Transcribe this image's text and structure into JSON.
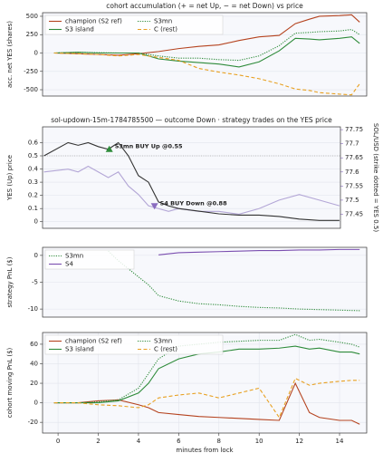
{
  "chart_data": [
    {
      "type": "line",
      "title": "cohort accumulation (+ = net Up, − = net Down) vs price",
      "ylabel": "acc. net YES (shares)",
      "x": [
        -0.2,
        1,
        2,
        3,
        4,
        5,
        6,
        7,
        8,
        9,
        10,
        11,
        11.8,
        12.5,
        13,
        14,
        14.6,
        15
      ],
      "xlim": [
        -0.77,
        15.35
      ],
      "ylim": [
        -586,
        549
      ],
      "yticks": [
        -500,
        -250,
        0,
        250,
        500
      ],
      "grid": true,
      "legend": "upper left",
      "legend_columns": 2,
      "series": [
        {
          "name": "champion (S2 ref)",
          "color": "#b5431f",
          "style": "solid",
          "values": [
            0,
            -10,
            -20,
            -30,
            -10,
            20,
            60,
            90,
            110,
            170,
            220,
            240,
            400,
            460,
            500,
            510,
            520,
            420
          ]
        },
        {
          "name": "S3 island",
          "color": "#2e8b3a",
          "style": "solid",
          "values": [
            0,
            10,
            0,
            0,
            0,
            -80,
            -110,
            -130,
            -150,
            -190,
            -120,
            30,
            200,
            190,
            180,
            200,
            220,
            130
          ]
        },
        {
          "name": "S3mn",
          "color": "#2e8b3a",
          "style": "dotted",
          "values": [
            0,
            10,
            5,
            0,
            0,
            -40,
            -70,
            -70,
            -90,
            -100,
            -40,
            100,
            270,
            280,
            290,
            300,
            320,
            250
          ]
        },
        {
          "name": "C (rest)",
          "color": "#e8a020",
          "style": "dashed",
          "values": [
            0,
            -10,
            -20,
            -40,
            -20,
            -60,
            -100,
            -210,
            -260,
            -300,
            -350,
            -420,
            -490,
            -510,
            -540,
            -560,
            -570,
            -420
          ]
        }
      ]
    },
    {
      "type": "line",
      "title": "sol-updown-15m-1784785500 — outcome Down · strategy trades on the YES price",
      "ylabel": "YES (Up) price",
      "y2label": "SOL/USD (strike dotted = YES 0.5)",
      "y2color": "#8a6cc0",
      "x": [
        -0.7,
        0.5,
        1,
        1.5,
        2,
        2.5,
        3,
        3.5,
        4,
        4.5,
        5,
        5.5,
        6,
        7,
        8,
        9,
        10,
        11,
        12,
        13,
        14
      ],
      "xlim": [
        -0.77,
        14.05
      ],
      "ylim": [
        -0.05,
        0.72
      ],
      "yticks": [
        0.0,
        0.1,
        0.2,
        0.3,
        0.4,
        0.5,
        0.6
      ],
      "y2lim": [
        77.4,
        77.76
      ],
      "y2ticks": [
        77.45,
        77.5,
        77.55,
        77.6,
        77.65,
        77.7,
        77.75
      ],
      "hline": 0.5,
      "grid": true,
      "series": [
        {
          "color": "#b3a6d6",
          "style": "solid",
          "axis": "y2",
          "values": [
            77.6,
            77.61,
            77.6,
            77.62,
            77.6,
            77.58,
            77.6,
            77.55,
            77.52,
            77.48,
            77.47,
            77.46,
            77.47,
            77.46,
            77.46,
            77.45,
            77.47,
            77.5,
            77.52,
            77.5,
            77.48
          ]
        },
        {
          "color": "#333333",
          "style": "solid",
          "values": [
            0.5,
            0.6,
            0.58,
            0.6,
            0.57,
            0.55,
            0.6,
            0.5,
            0.35,
            0.3,
            0.15,
            0.12,
            0.1,
            0.08,
            0.06,
            0.05,
            0.05,
            0.04,
            0.02,
            0.01,
            0.01
          ]
        }
      ],
      "annotations": [
        {
          "text": "S3mn BUY Up @0.55",
          "x": 2.55,
          "y": 0.55,
          "color": "#2e8b3a",
          "marker": "up"
        },
        {
          "text": "S4 BUY Down @0.88",
          "x": 4.8,
          "y": 0.12,
          "color": "#8a6cc0",
          "marker": "down"
        }
      ]
    },
    {
      "type": "line",
      "ylabel": "strategy PnL ($)",
      "x": [
        2.5,
        3,
        3.5,
        4,
        4.5,
        5,
        6,
        7,
        8,
        9,
        10,
        11,
        12,
        13,
        14,
        15
      ],
      "xlim": [
        -0.77,
        15.35
      ],
      "ylim": [
        -11.5,
        1.5
      ],
      "yticks": [
        -10,
        -5,
        0
      ],
      "grid": true,
      "legend": "upper left",
      "legend_columns": 1,
      "series": [
        {
          "name": "S3mn",
          "color": "#2e8b3a",
          "style": "dotted",
          "values": [
            0.8,
            -1,
            -2.5,
            -4,
            -5.5,
            -7.5,
            -8.5,
            -9,
            -9.2,
            -9.5,
            -9.7,
            -9.8,
            -10,
            -10.1,
            -10.2,
            -10.3
          ]
        },
        {
          "name": "S4",
          "color": "#7b4fb0",
          "style": "solid",
          "values": [
            null,
            null,
            null,
            null,
            null,
            0.1,
            0.5,
            0.6,
            0.7,
            0.8,
            0.9,
            0.9,
            1.0,
            1.0,
            1.1,
            1.1
          ]
        }
      ]
    },
    {
      "type": "line",
      "ylabel": "cohort moving PnL ($)",
      "xlabel": "minutes from lock",
      "x": [
        -0.2,
        1,
        2,
        3,
        4,
        4.5,
        5,
        6,
        7,
        8,
        9,
        10,
        11,
        11.8,
        12.5,
        13,
        14,
        14.6,
        15
      ],
      "xlim": [
        -0.77,
        15.35
      ],
      "xticks": [
        0,
        2,
        4,
        6,
        8,
        10,
        12,
        14
      ],
      "ylim": [
        -31,
        72
      ],
      "yticks": [
        -20,
        0,
        20,
        40,
        60
      ],
      "grid": true,
      "legend": "upper left",
      "legend_columns": 2,
      "series": [
        {
          "name": "champion (S2 ref)",
          "color": "#b5431f",
          "style": "solid",
          "values": [
            0,
            0,
            2,
            3,
            -2,
            -5,
            -10,
            -12,
            -14,
            -15,
            -16,
            -17,
            -18,
            20,
            -10,
            -15,
            -18,
            -18,
            -22
          ]
        },
        {
          "name": "S3 island",
          "color": "#2e8b3a",
          "style": "solid",
          "values": [
            0,
            0,
            0,
            2,
            10,
            20,
            35,
            45,
            50,
            52,
            55,
            55,
            56,
            58,
            55,
            56,
            52,
            52,
            50
          ]
        },
        {
          "name": "S3mn",
          "color": "#2e8b3a",
          "style": "dotted",
          "values": [
            0,
            0,
            1,
            3,
            15,
            30,
            45,
            58,
            60,
            62,
            63,
            64,
            64,
            70,
            64,
            65,
            62,
            60,
            57
          ]
        },
        {
          "name": "C (rest)",
          "color": "#e8a020",
          "style": "dashed",
          "values": [
            0,
            0,
            -2,
            -3,
            -5,
            -2,
            5,
            8,
            10,
            5,
            10,
            15,
            -15,
            25,
            18,
            20,
            22,
            23,
            23
          ]
        }
      ]
    }
  ]
}
